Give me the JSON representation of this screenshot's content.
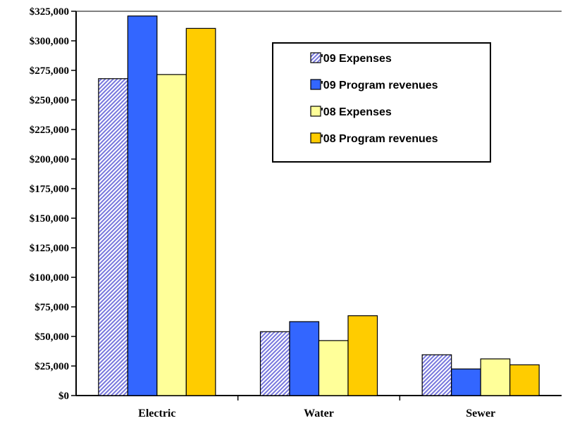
{
  "chart_data": {
    "type": "bar",
    "title": "",
    "xlabel": "",
    "ylabel": "",
    "categories": [
      "Electric",
      "Water",
      "Sewer"
    ],
    "ylim": [
      0,
      325000
    ],
    "y_ticks": [
      "$0",
      "$25,000",
      "$50,000",
      "$75,000",
      "$100,000",
      "$125,000",
      "$150,000",
      "$175,000",
      "$200,000",
      "$225,000",
      "$250,000",
      "$275,000",
      "$300,000",
      "$325,000"
    ],
    "y_tick_values": [
      0,
      25000,
      50000,
      75000,
      100000,
      125000,
      150000,
      175000,
      200000,
      225000,
      250000,
      275000,
      300000,
      325000
    ],
    "grid": false,
    "legend_position": "top-right",
    "series": [
      {
        "name": "'09 Expenses",
        "values": [
          268000,
          54000,
          34500
        ],
        "color": "#9999ee",
        "pattern": "diagonal-hatch"
      },
      {
        "name": "'09 Program revenues",
        "values": [
          321000,
          62500,
          22500
        ],
        "color": "#3366ff",
        "pattern": "solid"
      },
      {
        "name": "'08 Expenses",
        "values": [
          271500,
          46500,
          31000
        ],
        "color": "#ffff99",
        "pattern": "solid"
      },
      {
        "name": "'08 Program revenues",
        "values": [
          310500,
          67500,
          26000
        ],
        "color": "#ffcc00",
        "pattern": "solid"
      }
    ]
  }
}
